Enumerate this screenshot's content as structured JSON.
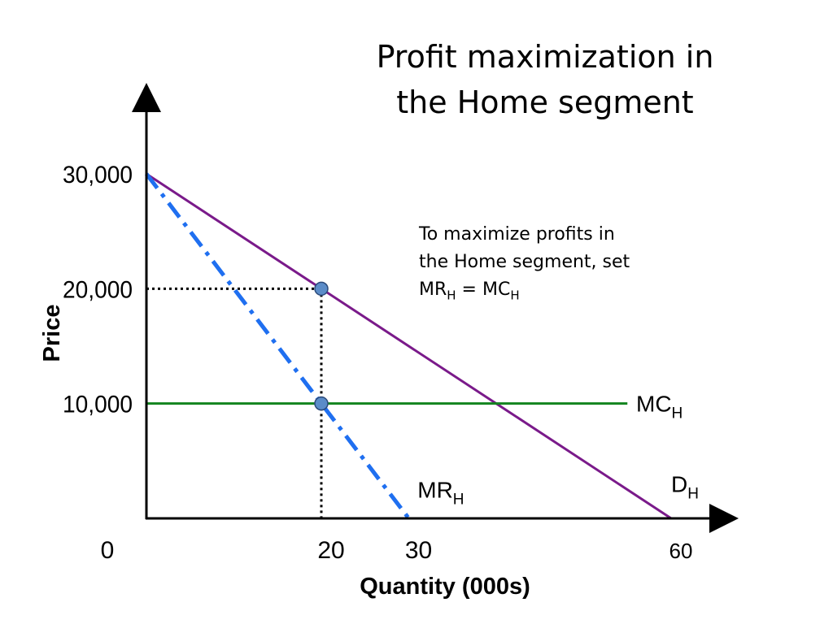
{
  "title_line1": "Profit maximization in",
  "title_line2": "the Home segment",
  "note": {
    "line1": "To maximize profits in",
    "line2": "the Home segment, set",
    "mr": "MR",
    "eq": " = MC",
    "sub": "H"
  },
  "chart_data": {
    "type": "line",
    "xlabel": "Quantity (000s)",
    "ylabel": "Price",
    "xlim": [
      0,
      65
    ],
    "ylim": [
      0,
      33000
    ],
    "x_ticks": [
      {
        "value": 0,
        "label": "0"
      },
      {
        "value": 20,
        "label": "20"
      },
      {
        "value": 30,
        "label": "30"
      },
      {
        "value": 60,
        "label": "60"
      }
    ],
    "y_ticks": [
      {
        "value": 10000,
        "label": "10,000"
      },
      {
        "value": 20000,
        "label": "20,000"
      },
      {
        "value": 30000,
        "label": "30,000"
      }
    ],
    "series": [
      {
        "name": "D",
        "sub": "H",
        "color": "#7a1a8a",
        "style": "solid",
        "points": [
          [
            0,
            30000
          ],
          [
            60,
            0
          ]
        ],
        "label_at": [
          60,
          3000
        ]
      },
      {
        "name": "MR",
        "sub": "H",
        "color": "#1f6ff0",
        "style": "dashdot",
        "points": [
          [
            0,
            30000
          ],
          [
            30,
            0
          ]
        ],
        "label_at": [
          31,
          2500
        ]
      },
      {
        "name": "MC",
        "sub": "H",
        "color": "#13841f",
        "style": "solid",
        "points": [
          [
            0,
            10000
          ],
          [
            55,
            10000
          ]
        ],
        "label_at": [
          56,
          10000
        ]
      }
    ],
    "markers": [
      {
        "x": 20,
        "y": 20000
      },
      {
        "x": 20,
        "y": 10000
      }
    ],
    "guides": [
      {
        "points": [
          [
            0,
            20000
          ],
          [
            20,
            20000
          ]
        ]
      },
      {
        "points": [
          [
            20,
            20000
          ],
          [
            20,
            0
          ]
        ]
      }
    ],
    "colors": {
      "axis": "#000000",
      "marker_fill": "#5b8cc8",
      "marker_stroke": "#2b4a7a",
      "guide": "#000000"
    }
  }
}
